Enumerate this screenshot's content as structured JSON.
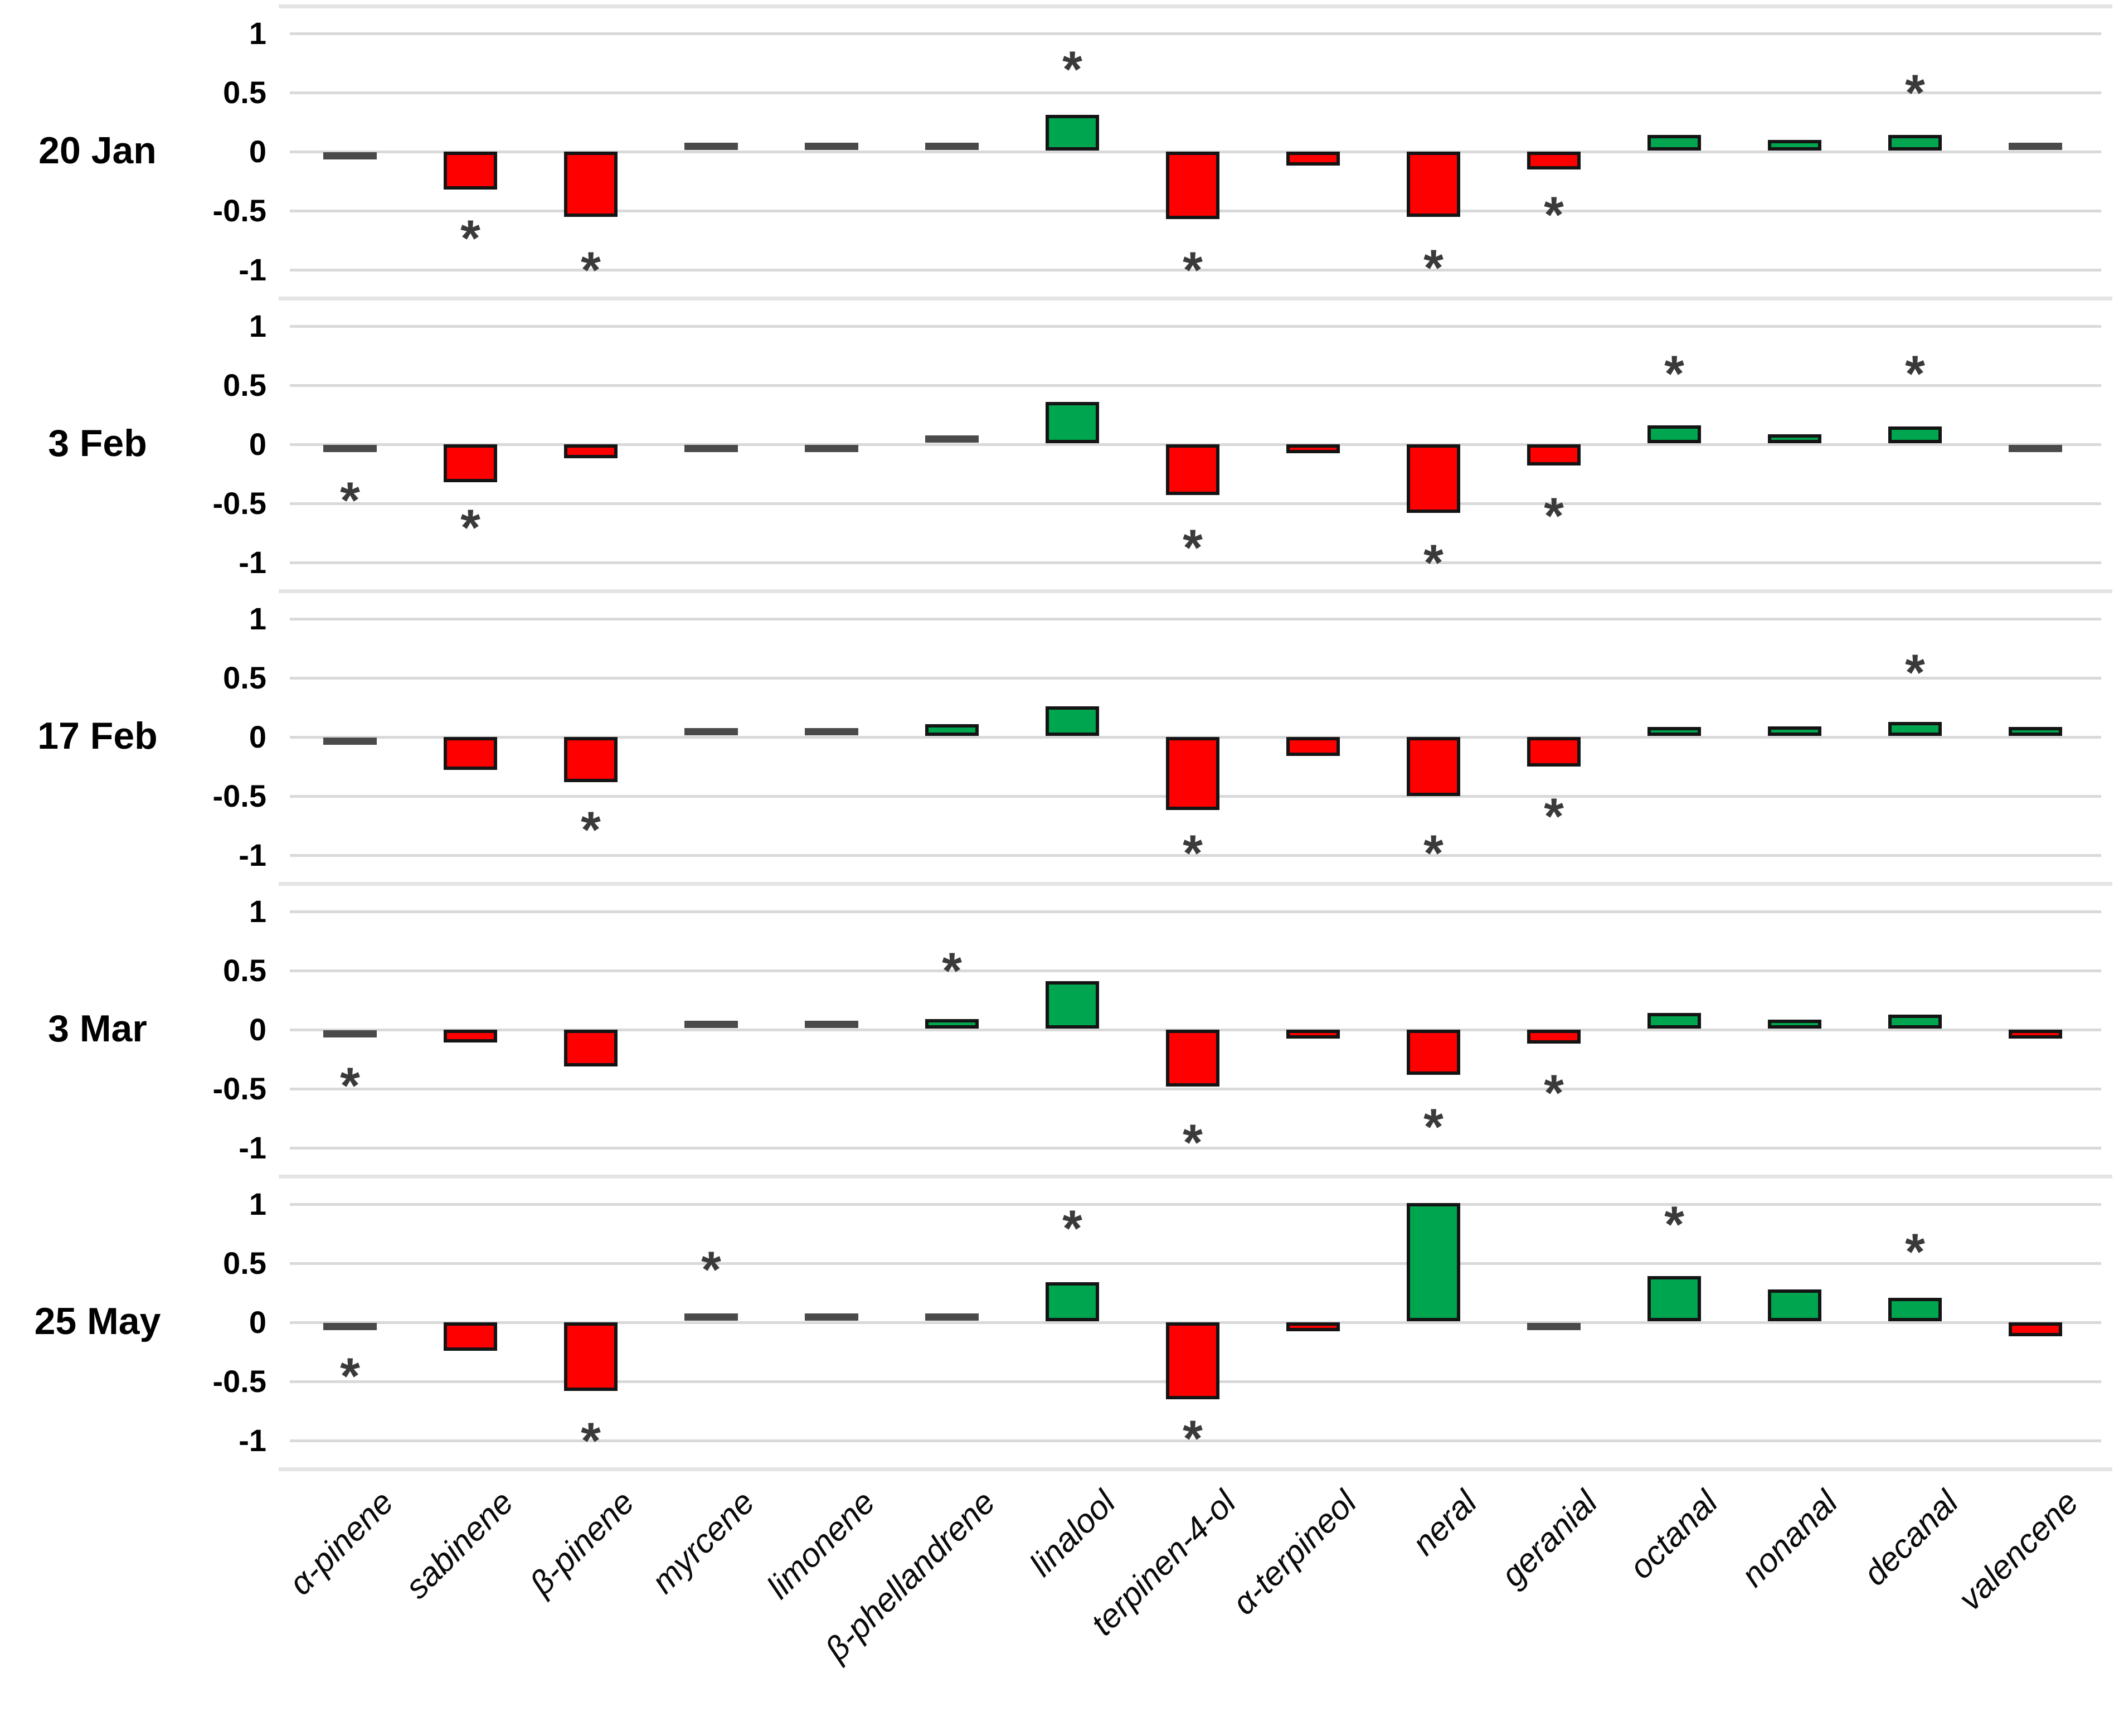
{
  "figure": {
    "description": "Five stacked bar-chart panels (one per sampling date) showing relative change of 15 citrus volatile compounds; green = increase, red = decrease, asterisk = statistically significant",
    "significance_marker": "*"
  },
  "chart_data": {
    "type": "bar",
    "grid": true,
    "legend": "none",
    "ylim": [
      -1,
      1
    ],
    "yticks": [
      1,
      0.5,
      0,
      -0.5,
      -1
    ],
    "ytick_labels": [
      "1",
      "0.5",
      "0",
      "-0.5",
      "-1"
    ],
    "significance_marker": "*",
    "palette": {
      "positive": "#00A64F",
      "negative": "#FF0000",
      "neutral": "#4a4a4a",
      "gridline": "#d9d9d9",
      "separator": "#e4e4e4",
      "asterisk": "#3a3a3a",
      "bar_border": "#141414"
    },
    "categories": [
      "α-pinene",
      "sabinene",
      "β-pinene",
      "myrcene",
      "limonene",
      "β-phellandrene",
      "linalool",
      "terpinen-4-ol",
      "α-terpineol",
      "neral",
      "geranial",
      "octanal",
      "nonanal",
      "decanal",
      "valencene"
    ],
    "panels": [
      {
        "label": "20 Jan",
        "values": [
          -0.03,
          -0.32,
          -0.55,
          0.02,
          0.02,
          0.03,
          0.3,
          -0.57,
          -0.12,
          -0.55,
          -0.15,
          0.13,
          0.09,
          0.13,
          0.02
        ],
        "colors": [
          "n",
          "r",
          "r",
          "n",
          "n",
          "n",
          "g",
          "r",
          "r",
          "r",
          "r",
          "g",
          "g",
          "g",
          "n"
        ],
        "asterisks": [
          null,
          -0.68,
          -0.95,
          null,
          null,
          null,
          0.75,
          -0.95,
          null,
          -0.93,
          -0.48,
          null,
          null,
          0.55,
          null
        ]
      },
      {
        "label": "3 Feb",
        "values": [
          -0.04,
          -0.32,
          -0.12,
          -0.02,
          -0.03,
          0.02,
          0.35,
          -0.43,
          -0.04,
          -0.58,
          -0.18,
          0.15,
          0.04,
          0.14,
          -0.03
        ],
        "colors": [
          "n",
          "r",
          "r",
          "n",
          "n",
          "n",
          "g",
          "r",
          "r",
          "r",
          "r",
          "g",
          "g",
          "g",
          "n"
        ],
        "asterisks": [
          -0.42,
          -0.65,
          null,
          null,
          null,
          null,
          null,
          -0.82,
          null,
          -0.95,
          -0.55,
          0.65,
          null,
          0.65,
          null
        ]
      },
      {
        "label": "17 Feb",
        "values": [
          -0.03,
          -0.28,
          -0.38,
          0.02,
          0.02,
          0.1,
          0.25,
          -0.62,
          -0.16,
          -0.5,
          -0.25,
          0.07,
          0.08,
          0.12,
          0.06
        ],
        "colors": [
          "n",
          "r",
          "r",
          "n",
          "n",
          "g",
          "g",
          "r",
          "r",
          "r",
          "r",
          "g",
          "g",
          "g",
          "g"
        ],
        "asterisks": [
          null,
          null,
          -0.73,
          null,
          null,
          null,
          null,
          -0.93,
          null,
          -0.93,
          -0.62,
          null,
          null,
          0.6,
          null
        ]
      },
      {
        "label": "3 Mar",
        "values": [
          -0.05,
          -0.11,
          -0.31,
          0.02,
          0.02,
          0.08,
          0.4,
          -0.48,
          -0.05,
          -0.38,
          -0.12,
          0.13,
          0.05,
          0.12,
          -0.04
        ],
        "colors": [
          "n",
          "r",
          "r",
          "n",
          "n",
          "g",
          "g",
          "r",
          "r",
          "r",
          "r",
          "g",
          "g",
          "g",
          "r"
        ],
        "asterisks": [
          -0.42,
          null,
          null,
          null,
          null,
          0.55,
          null,
          -0.9,
          null,
          -0.77,
          -0.48,
          null,
          null,
          null,
          null
        ]
      },
      {
        "label": "25 May",
        "values": [
          -0.04,
          -0.24,
          -0.58,
          0.02,
          0.02,
          0.03,
          0.33,
          -0.65,
          -0.07,
          1.0,
          -0.04,
          0.38,
          0.27,
          0.2,
          -0.12
        ],
        "colors": [
          "n",
          "r",
          "r",
          "n",
          "n",
          "n",
          "g",
          "r",
          "r",
          "g",
          "n",
          "g",
          "g",
          "g",
          "r"
        ],
        "asterisks": [
          -0.4,
          null,
          -0.95,
          0.5,
          null,
          null,
          0.85,
          -0.93,
          null,
          null,
          null,
          0.88,
          null,
          0.65,
          null
        ]
      }
    ]
  }
}
